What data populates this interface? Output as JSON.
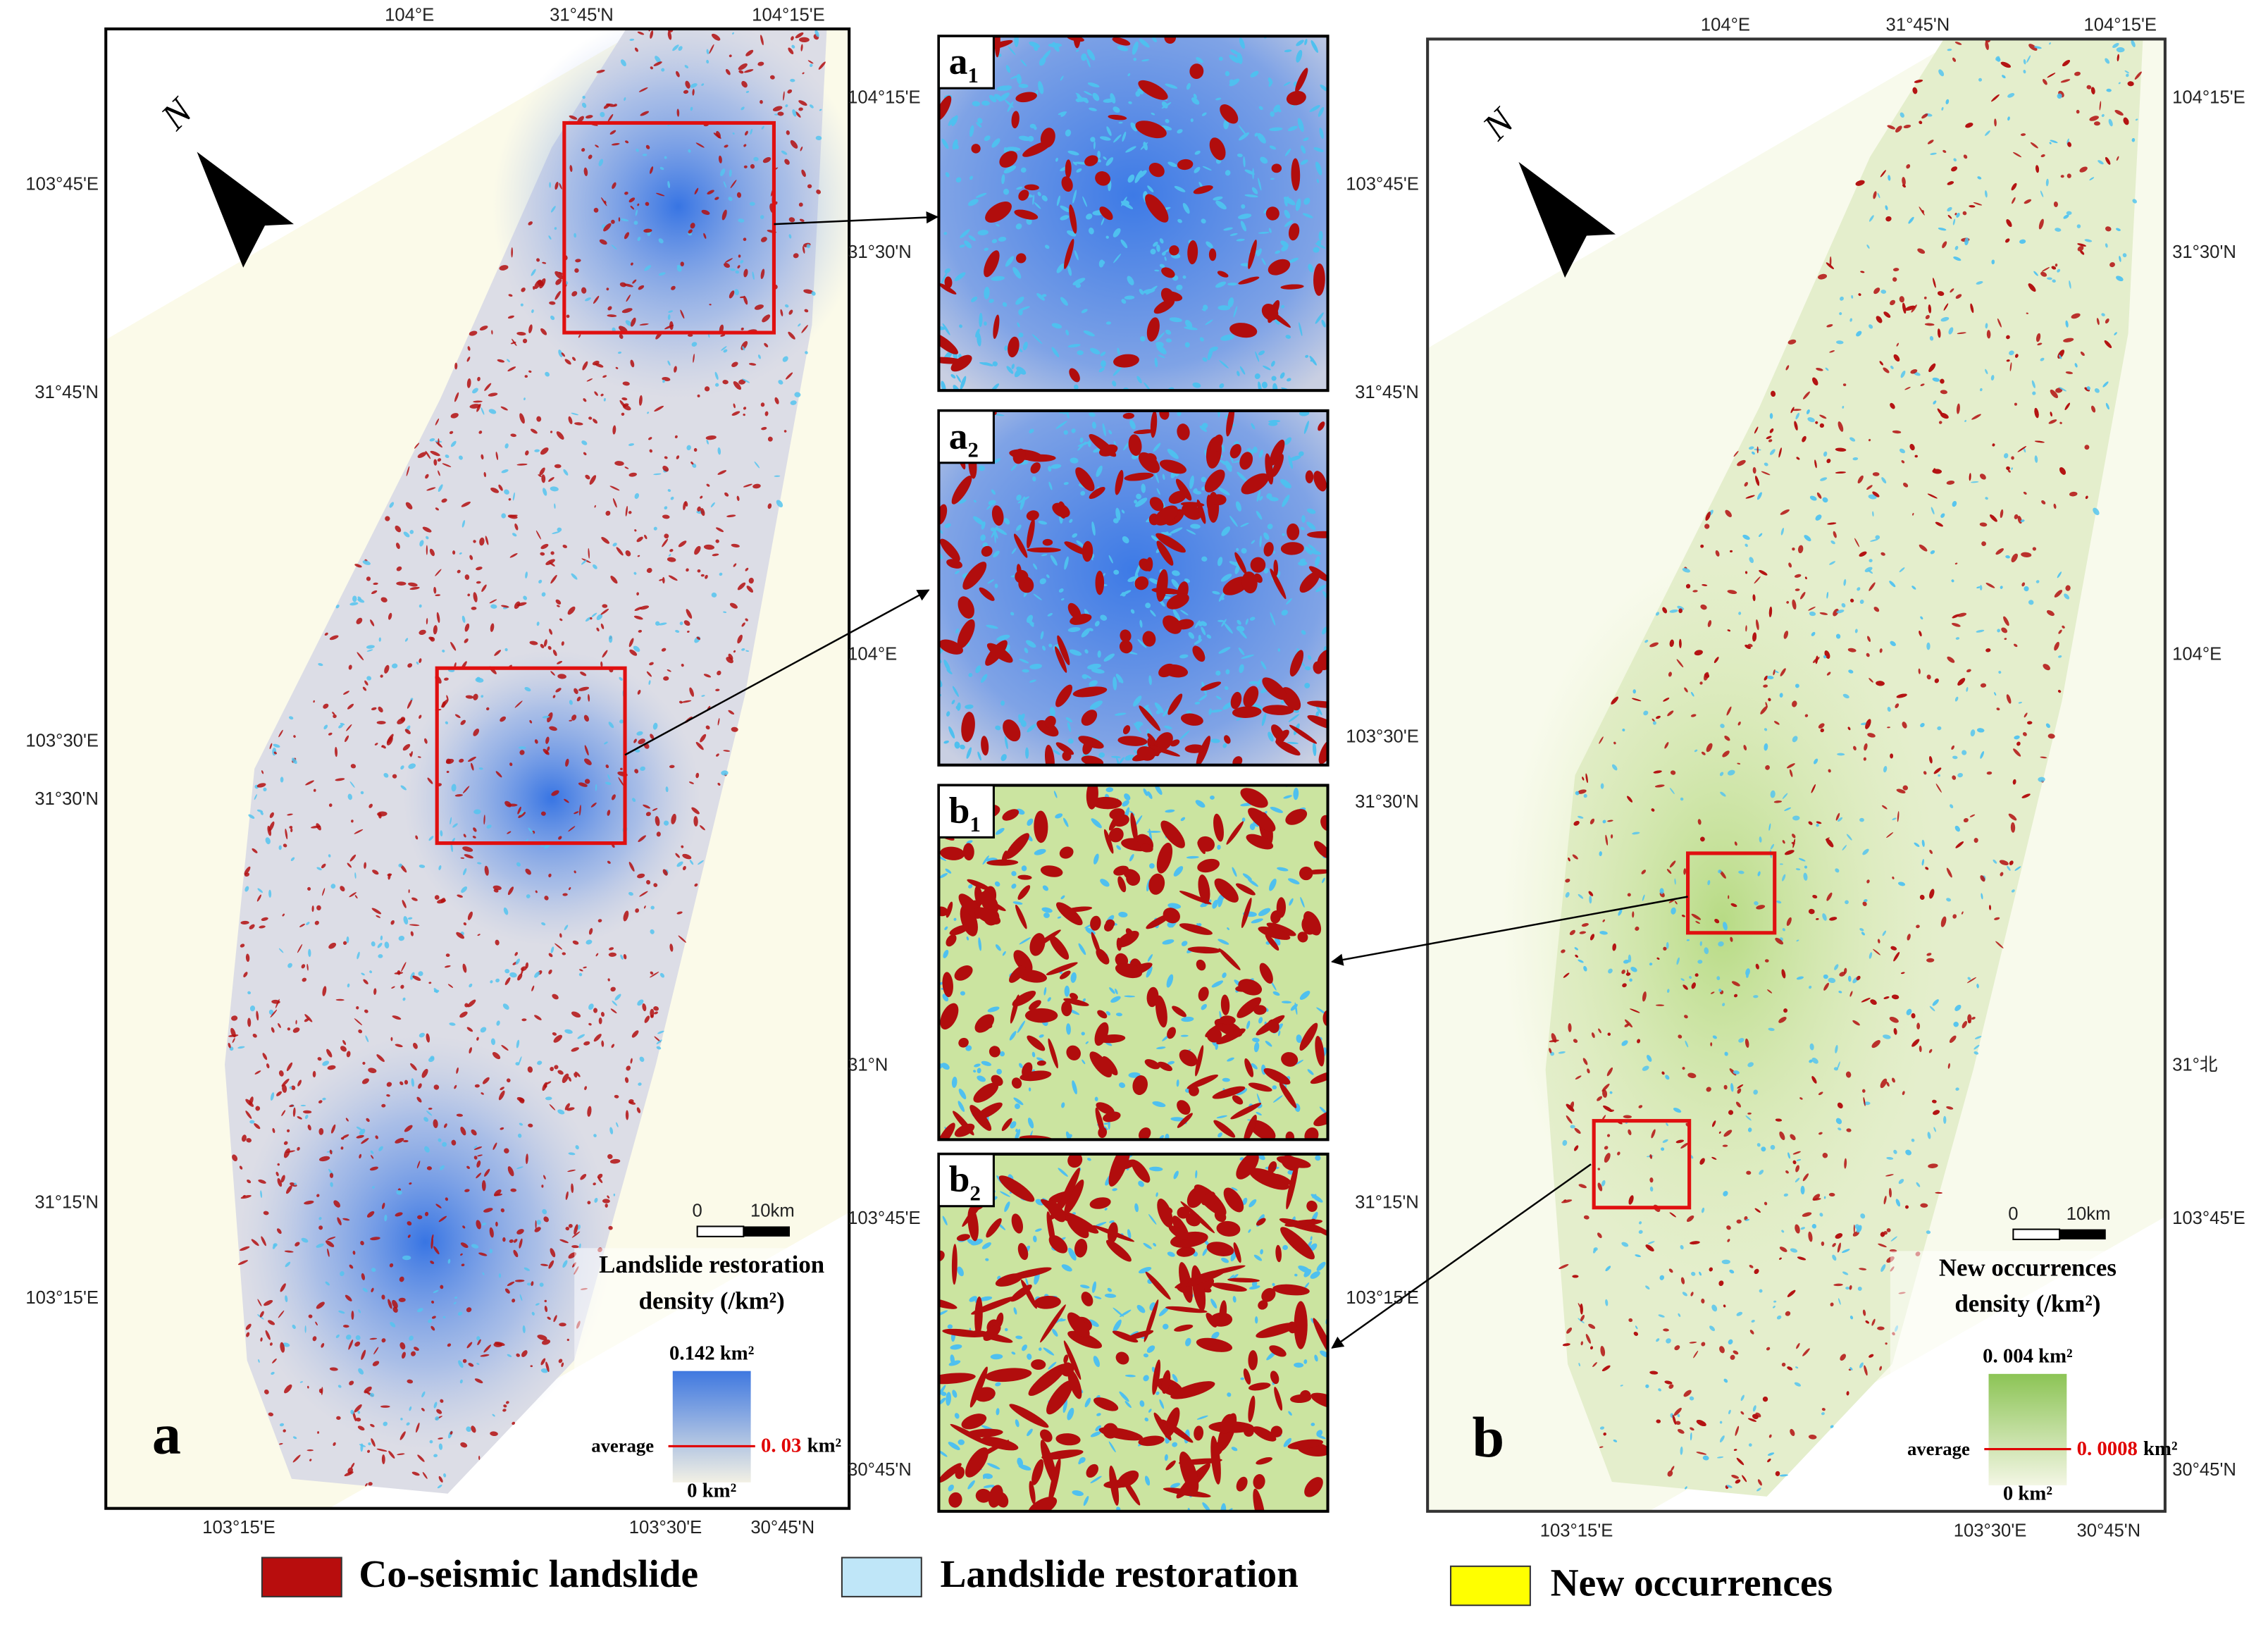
{
  "map_a": {
    "label": "a",
    "top_ticks": [
      "104°E",
      "31°45'N",
      "104°15'E"
    ],
    "bottom_ticks": [
      "103°15'E",
      "103°30'E",
      "30°45'N"
    ],
    "left_ticks": [
      "103°45'E",
      "31°45'N",
      "103°30'E",
      "31°30'N",
      "31°15'N",
      "103°15'E"
    ],
    "right_ticks": [
      "104°15'E",
      "31°30'N",
      "104°E",
      "31°N",
      "103°45'E",
      "30°45'N"
    ],
    "north": "N",
    "scale_bar": [
      "0",
      "10km"
    ],
    "density_legend": {
      "title": [
        "Landslide restoration",
        "density (/km²)"
      ],
      "max": "0.142 km²",
      "average": "average",
      "average_value": "0. 03",
      "unit": "km²",
      "min": "0 km²"
    }
  },
  "map_b": {
    "label": "b",
    "top_ticks": [
      "104°E",
      "31°45'N",
      "104°15'E"
    ],
    "bottom_ticks": [
      "103°15'E",
      "103°30'E",
      "30°45'N"
    ],
    "left_ticks": [
      "103°45'E",
      "31°45'N",
      "103°30'E",
      "31°30'N",
      "31°15'N",
      "103°15'E"
    ],
    "right_ticks": [
      "104°15'E",
      "31°30'N",
      "104°E",
      "31°北",
      "103°45'E",
      "30°45'N"
    ],
    "north": "N",
    "scale_bar": [
      "0",
      "10km"
    ],
    "density_legend": {
      "title": [
        "New occurrences",
        "density (/km²)"
      ],
      "max": "0. 004 km²",
      "average": "average",
      "average_value": "0. 0008",
      "unit": "km²",
      "min": "0 km²"
    }
  },
  "insets": [
    {
      "letter": "a",
      "sub": "1"
    },
    {
      "letter": "a",
      "sub": "2"
    },
    {
      "letter": "b",
      "sub": "1"
    },
    {
      "letter": "b",
      "sub": "2"
    }
  ],
  "legend": [
    {
      "label": "Co-seismic landslide",
      "color": "#b80d0d"
    },
    {
      "label": "Landslide restoration",
      "color": "#bfe6f8"
    },
    {
      "label": "New occurrences",
      "color": "#ffff00"
    }
  ]
}
